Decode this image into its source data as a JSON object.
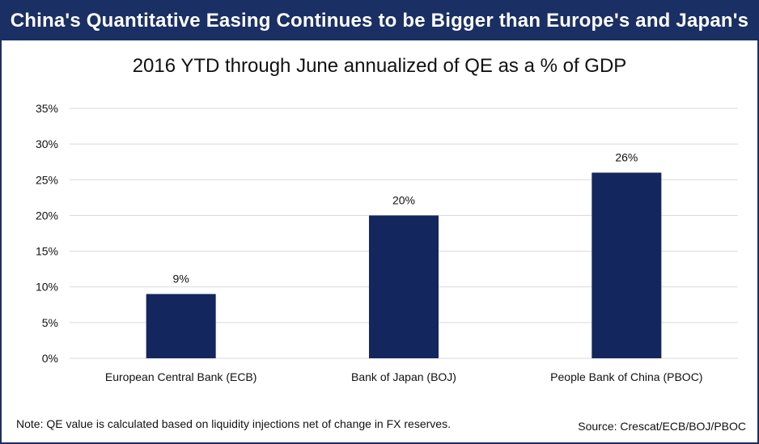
{
  "banner": {
    "title": "China's Quantitative Easing Continues to be Bigger than Europe's and Japan's"
  },
  "chart_data": {
    "type": "bar",
    "title": "2016 YTD through June annualized of QE as a % of GDP",
    "categories": [
      "European Central Bank (ECB)",
      "Bank of Japan (BOJ)",
      "People Bank of China (PBOC)"
    ],
    "values": [
      9,
      20,
      26
    ],
    "data_labels": [
      "9%",
      "20%",
      "26%"
    ],
    "ylim": [
      0,
      35
    ],
    "yticks": [
      0,
      5,
      10,
      15,
      20,
      25,
      30,
      35
    ],
    "ytick_labels": [
      "0%",
      "5%",
      "10%",
      "15%",
      "20%",
      "25%",
      "30%",
      "35%"
    ],
    "xlabel": "",
    "ylabel": "",
    "grid": true,
    "bar_color": "#13275e",
    "grid_color": "#d9d9d9"
  },
  "footer": {
    "note": "Note: QE value is calculated based on liquidity injections net of change in FX reserves.",
    "source": "Source: Crescat/ECB/BOJ/PBOC"
  }
}
